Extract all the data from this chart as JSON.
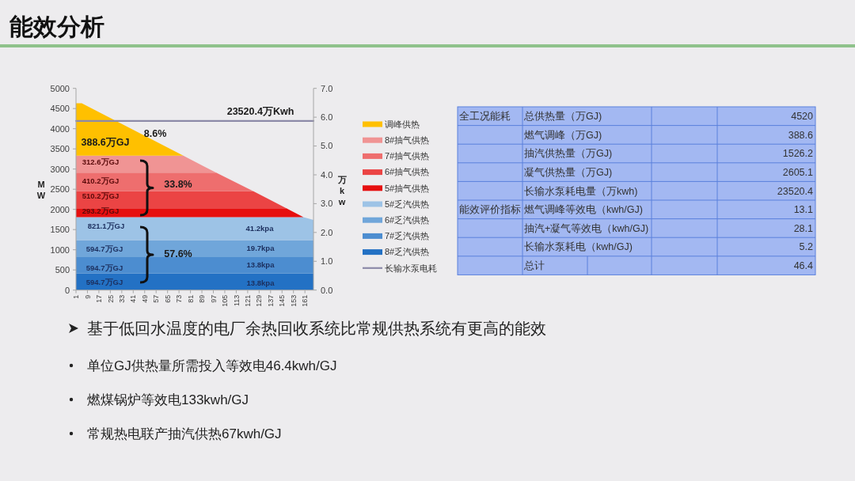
{
  "chart_data": [
    {
      "type": "area",
      "title": "能效分析",
      "ylabel": "MW",
      "y2label": "万kw",
      "stacked": true,
      "legend": "right",
      "x": [
        1,
        5,
        76,
        99,
        125,
        148,
        160,
        167
      ],
      "series": [
        {
          "name": "8#乏汽供热",
          "color": "#2371c4",
          "values": [
            410,
            410,
            410,
            410,
            410,
            410,
            410,
            410
          ]
        },
        {
          "name": "7#乏汽供热",
          "color": "#4c8dd0",
          "values": [
            410,
            410,
            410,
            410,
            410,
            410,
            410,
            410
          ]
        },
        {
          "name": "6#乏汽供热",
          "color": "#70a6da",
          "values": [
            420,
            420,
            420,
            420,
            420,
            420,
            420,
            420
          ]
        },
        {
          "name": "5#乏汽供热",
          "color": "#9dc3e6",
          "values": [
            570,
            570,
            570,
            570,
            570,
            570,
            570,
            500
          ]
        },
        {
          "name": "5#抽气供热",
          "color": "#e60f0f",
          "values": [
            220,
            220,
            220,
            220,
            220,
            220,
            0,
            0
          ]
        },
        {
          "name": "6#抽气供热",
          "color": "#eb4444",
          "values": [
            420,
            420,
            420,
            420,
            420,
            0,
            0,
            0
          ]
        },
        {
          "name": "7#抽气供热",
          "color": "#ee6e6e",
          "values": [
            460,
            460,
            460,
            460,
            0,
            0,
            0,
            0
          ]
        },
        {
          "name": "8#抽气供热",
          "color": "#f09494",
          "values": [
            420,
            420,
            420,
            0,
            0,
            0,
            0,
            0
          ]
        },
        {
          "name": "调峰供热",
          "color": "#ffc000",
          "values": [
            1300,
            1300,
            0,
            0,
            0,
            0,
            0,
            0
          ]
        },
        {
          "name": "长输水泵电耗",
          "type": "line",
          "axis": "y2",
          "color": "#8c8aa8",
          "x": [
            1,
            167
          ],
          "values": [
            5.87,
            5.87
          ]
        }
      ],
      "xlim": [
        1,
        167
      ],
      "xticks": [
        1,
        9,
        17,
        25,
        33,
        41,
        49,
        57,
        65,
        73,
        81,
        89,
        97,
        105,
        113,
        121,
        129,
        137,
        145,
        153,
        161
      ],
      "ylim": [
        0,
        5000
      ],
      "yticks": [
        0,
        500,
        1000,
        1500,
        2000,
        2500,
        3000,
        3500,
        4000,
        4500,
        5000
      ],
      "y2lim": [
        0,
        7
      ],
      "y2ticks": [
        {
          "value": 0,
          "label": "0.0"
        },
        {
          "value": 1,
          "label": "1.0"
        },
        {
          "value": 2,
          "label": "2.0"
        },
        {
          "value": 3,
          "label": "3.0"
        },
        {
          "value": 4,
          "label": "4.0"
        },
        {
          "value": 5,
          "label": "5.0"
        },
        {
          "value": 6,
          "label": "6.0"
        },
        {
          "value": 7,
          "label": "7.0"
        }
      ],
      "annotations": [
        "23520.4万Kwh",
        "388.6万GJ",
        "8.6%",
        "312.6万GJ",
        "410.2万GJ",
        "510.2万GJ",
        "293.2万GJ",
        "33.8%",
        "821.1万GJ",
        "594.7万GJ",
        "594.7万GJ",
        "594.7万GJ",
        "57.6%",
        "41.2kpa",
        "19.7kpa",
        "13.8kpa",
        "13.8kpa"
      ]
    },
    {
      "type": "other",
      "data_labels": true,
      "y_categories": [
        "全工况能耗",
        null,
        null,
        null,
        null,
        "能效评价指标",
        null,
        null,
        null
      ],
      "categories": [
        "总供热量（万GJ)",
        "燃气调峰（万GJ)",
        "抽汽供热量（万GJ)",
        "凝气供热量（万GJ)",
        "长输水泵耗电量（万kwh)",
        "燃气调峰等效电（kwh/GJ)",
        "抽汽+凝气等效电（kwh/GJ)",
        "长输水泵耗电（kwh/GJ)",
        "总计"
      ],
      "values": [
        4520,
        388.6,
        1526.2,
        2605.1,
        23520.4,
        13.1,
        28.1,
        5.2,
        46.4
      ]
    },
    {
      "type": "other",
      "annotations": [
        "基于低回水温度的电厂余热回收系统比常规供热系统有更高的能效",
        "单位GJ供热量所需投入等效电46.4kwh/GJ",
        "燃煤锅炉等效电133kwh/GJ",
        "常规热电联产抽汽供热67kwh/GJ"
      ]
    }
  ]
}
